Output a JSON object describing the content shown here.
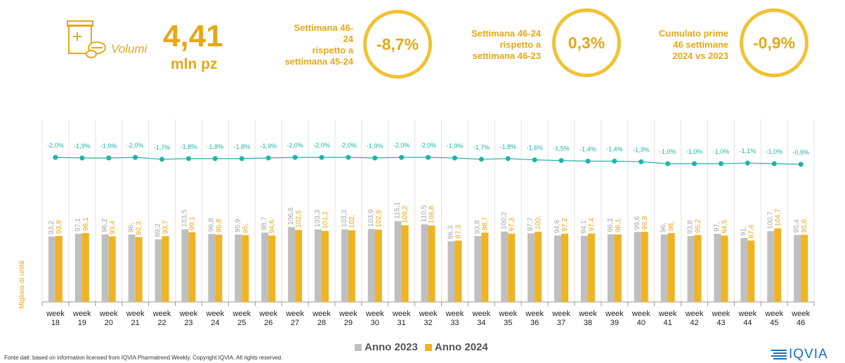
{
  "header": {
    "volumi_label": "Volumi",
    "volumi_value": "4,41",
    "volumi_unit": "mln pz",
    "kpis": [
      {
        "lines": [
          "Settimana 46-",
          "24",
          "rispetto a",
          "settimana 45-24"
        ],
        "value": "-8,7%"
      },
      {
        "lines": [
          "Settimana 46-24",
          "rispetto a",
          "settimana 46-23"
        ],
        "value": "0,3%"
      },
      {
        "lines": [
          "Cumulato prime",
          "46 settimane",
          "2024 vs 2023"
        ],
        "value": "-0,9%"
      }
    ]
  },
  "colors": {
    "accent": "#E6A817",
    "bar2023": "#BFBFBF",
    "bar2024": "#F0B323",
    "line": "#1DB4A6",
    "circle": "#F1C232",
    "brand": "#1B6FB6"
  },
  "chart_data": {
    "type": "bar",
    "ylabel": "Migliaia di unità",
    "categories": [
      "week 18",
      "week 19",
      "week 20",
      "week 21",
      "week 22",
      "week 23",
      "week 24",
      "week 25",
      "week 26",
      "week 27",
      "week 28",
      "week 29",
      "week 30",
      "week 31",
      "week 32",
      "week 33",
      "week 34",
      "week 35",
      "week 36",
      "week 37",
      "week 38",
      "week 39",
      "week 40",
      "week 41",
      "week 42",
      "week 43",
      "week 44",
      "week 45",
      "week 46"
    ],
    "series": [
      {
        "name": "Anno 2023",
        "values": [
          93.2,
          97.1,
          96.2,
          96,
          89.2,
          103.5,
          96.8,
          95.9,
          98.7,
          106.6,
          103.3,
          103.3,
          103.9,
          115.1,
          110.5,
          86.3,
          93.8,
          100.2,
          97.7,
          94.6,
          94.1,
          96.3,
          99.6,
          96,
          93.8,
          97,
          91,
          100.7,
          95.4
        ],
        "labels": [
          "93,2",
          "97,1",
          "96,2",
          "96,",
          "89,2",
          "103,5",
          "96,8",
          "95,9",
          "98,7",
          "106,6",
          "103,3",
          "103,3",
          "103,9",
          "115,1",
          "110,5",
          "86,3",
          "93,8",
          "100,2",
          "97,7",
          "94,6",
          "94,1",
          "96,3",
          "99,6",
          "96,",
          "93,8",
          "97,",
          "91,",
          "100,7",
          "95,4"
        ]
      },
      {
        "name": "Anno 2024",
        "values": [
          93.9,
          98.1,
          93.4,
          92.3,
          93.7,
          99.1,
          95.8,
          95,
          94.6,
          102.5,
          101.1,
          102,
          102.9,
          109.2,
          108.8,
          87.3,
          98.7,
          97.3,
          100,
          97.2,
          97.4,
          96.1,
          99.8,
          98,
          95.2,
          94.5,
          87.4,
          104.7,
          95.6
        ],
        "labels": [
          "93,9",
          "98,1",
          "93,4",
          "92,3",
          "93,7",
          "99,1",
          "95,8",
          "95,",
          "94,6",
          "102,5",
          "101,1",
          "102,",
          "102,9",
          "109,2",
          "108,8",
          "87,3",
          "98,7",
          "97,3",
          "100,",
          "97,2",
          "97,4",
          "96,1",
          "99,8",
          "98,",
          "95,2",
          "94,5",
          "87,4",
          "104,7",
          "95,6"
        ]
      }
    ],
    "cumulative_variation": {
      "values": [
        -2.0,
        -1.9,
        -1.9,
        -2.0,
        -1.7,
        -1.8,
        -1.8,
        -1.8,
        -1.9,
        -2.0,
        -2.0,
        -2.0,
        -1.9,
        -2.0,
        -2.0,
        -1.9,
        -1.7,
        -1.8,
        -1.6,
        -1.5,
        -1.4,
        -1.4,
        -1.3,
        -1.0,
        -1.0,
        -1.0,
        -1.1,
        -1.0,
        -0.9
      ],
      "labels": [
        "-2,0%",
        "-1,9%",
        "-1,9%",
        "-2,0%",
        "-1,7%",
        "-1,8%",
        "-1,8%",
        "-1,8%",
        "-1,9%",
        "-2,0%",
        "-2,0%",
        "-2,0%",
        "-1,9%",
        "-2,0%",
        "-2,0%",
        "-1,9%",
        "-1,7%",
        "-1,8%",
        "-1,6%",
        "-1,5%",
        "-1,4%",
        "-1,4%",
        "-1,3%",
        "-1,0%",
        "-1,0%",
        "-1,0%",
        "-1,1%",
        "-1,0%",
        "-0,9%"
      ]
    },
    "grid": "vertical separators",
    "legend_position": "bottom-center"
  },
  "legend": {
    "item1": "Anno 2023",
    "item2": "Anno 2024"
  },
  "footer": {
    "source": "Fonte dati: based on information licensed from IQVIA Pharmatrend Weekly. Copyright IQVIA. All rights reserved.",
    "logo_text": "IQVIA"
  }
}
